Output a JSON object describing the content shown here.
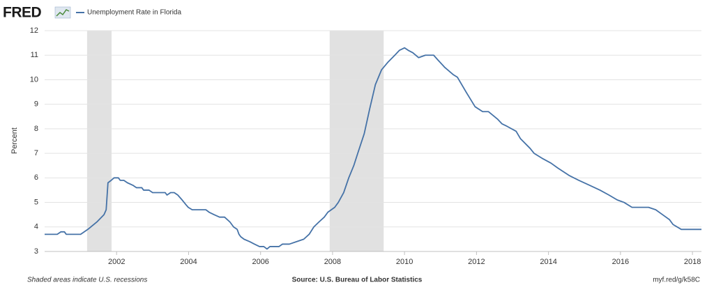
{
  "header": {
    "logo": "FRED"
  },
  "chart_data": {
    "type": "line",
    "y_label": "Percent",
    "grid": true,
    "xlim": [
      2000,
      2018.25
    ],
    "ylim": [
      3,
      12
    ],
    "xticks": [
      2002,
      2004,
      2006,
      2008,
      2010,
      2012,
      2014,
      2016,
      2018
    ],
    "yticks": [
      3,
      4,
      5,
      6,
      7,
      8,
      9,
      10,
      11,
      12
    ],
    "recessions": [
      [
        2001.18,
        2001.86
      ],
      [
        2007.92,
        2009.42
      ]
    ],
    "recession_color": "#e1e1e1",
    "x": [
      2000.0,
      2000.35,
      2000.45,
      2000.55,
      2000.6,
      2001.0,
      2001.2,
      2001.45,
      2001.65,
      2001.71,
      2001.76,
      2001.85,
      2001.93,
      2002.05,
      2002.1,
      2002.2,
      2002.3,
      2002.45,
      2002.55,
      2002.7,
      2002.75,
      2002.9,
      2003.0,
      2003.35,
      2003.4,
      2003.5,
      2003.6,
      2003.7,
      2003.82,
      2003.93,
      2003.99,
      2004.1,
      2004.48,
      2004.57,
      2004.71,
      2004.86,
      2005.0,
      2005.15,
      2005.25,
      2005.35,
      2005.4,
      2005.45,
      2005.54,
      2005.7,
      2005.83,
      2005.97,
      2006.09,
      2006.18,
      2006.26,
      2006.51,
      2006.61,
      2006.8,
      2007.0,
      2007.2,
      2007.35,
      2007.48,
      2007.62,
      2007.77,
      2007.87,
      2008.06,
      2008.16,
      2008.31,
      2008.45,
      2008.59,
      2008.7,
      2008.88,
      2009.03,
      2009.19,
      2009.36,
      2009.53,
      2009.73,
      2009.86,
      2010.0,
      2010.1,
      2010.23,
      2010.39,
      2010.58,
      2010.81,
      2010.93,
      2011.12,
      2011.36,
      2011.47,
      2011.71,
      2011.96,
      2012.17,
      2012.33,
      2012.58,
      2012.71,
      2012.85,
      2013.1,
      2013.22,
      2013.49,
      2013.6,
      2013.82,
      2014.07,
      2014.26,
      2014.57,
      2014.84,
      2015.14,
      2015.43,
      2015.68,
      2015.91,
      2016.1,
      2016.32,
      2016.78,
      2016.98,
      2017.17,
      2017.36,
      2017.46,
      2017.69,
      2018.25
    ],
    "series": [
      {
        "name": "Unemployment Rate in Florida",
        "color": "#4572a7",
        "values": [
          3.7,
          3.7,
          3.8,
          3.8,
          3.7,
          3.7,
          3.9,
          4.2,
          4.5,
          4.7,
          5.8,
          5.9,
          6.0,
          6.0,
          5.9,
          5.9,
          5.8,
          5.7,
          5.6,
          5.6,
          5.5,
          5.5,
          5.4,
          5.4,
          5.3,
          5.4,
          5.4,
          5.3,
          5.1,
          4.9,
          4.8,
          4.7,
          4.7,
          4.6,
          4.5,
          4.4,
          4.4,
          4.2,
          4.0,
          3.9,
          3.7,
          3.6,
          3.5,
          3.4,
          3.3,
          3.2,
          3.2,
          3.1,
          3.2,
          3.2,
          3.3,
          3.3,
          3.4,
          3.5,
          3.7,
          4.0,
          4.2,
          4.4,
          4.6,
          4.8,
          5.0,
          5.4,
          6.0,
          6.5,
          7.0,
          7.8,
          8.8,
          9.8,
          10.4,
          10.7,
          11.0,
          11.2,
          11.3,
          11.2,
          11.1,
          10.9,
          11.0,
          11.0,
          10.8,
          10.5,
          10.2,
          10.1,
          9.5,
          8.9,
          8.7,
          8.7,
          8.4,
          8.2,
          8.1,
          7.9,
          7.6,
          7.2,
          7.0,
          6.8,
          6.6,
          6.4,
          6.1,
          5.9,
          5.7,
          5.5,
          5.3,
          5.1,
          5.0,
          4.8,
          4.8,
          4.7,
          4.5,
          4.3,
          4.1,
          3.9,
          3.9
        ]
      }
    ]
  },
  "footer": {
    "note": "Shaded areas indicate U.S. recessions",
    "source": "Source: U.S. Bureau of Labor Statistics",
    "link": "myf.red/g/k58C"
  }
}
